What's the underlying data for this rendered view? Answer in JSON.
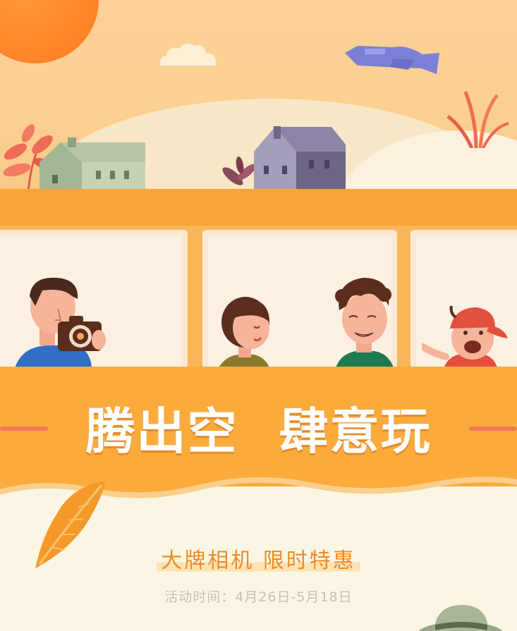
{
  "headline": {
    "part1": "腾出空",
    "part2": "肆意玩"
  },
  "promo": {
    "subtitle": "大牌相机  限时特惠",
    "date": "活动时间：4月26日-5月18日"
  },
  "colors": {
    "accent": "#fbab3c",
    "subtitle": "#f08a25",
    "date": "#c9bfae",
    "background": "#fbf6e4"
  },
  "icons": [
    "sun-icon",
    "cloud-icon",
    "plane-icon",
    "house-icon",
    "camera-icon",
    "leaf-icon",
    "hat-icon"
  ]
}
